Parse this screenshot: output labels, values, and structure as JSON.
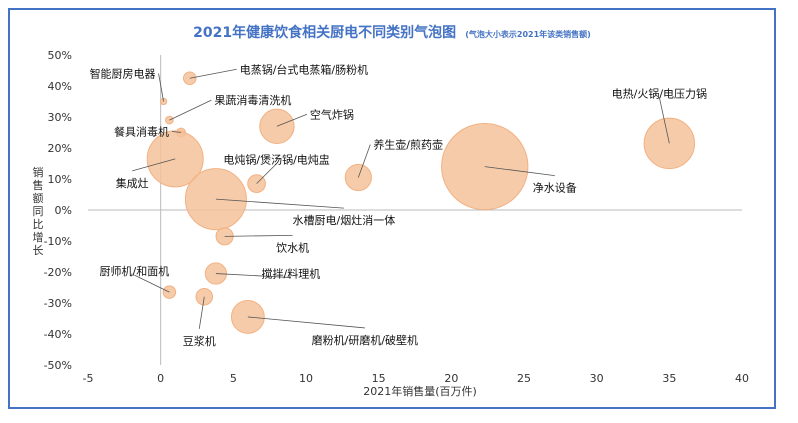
{
  "chart_data": {
    "type": "bubble",
    "title": "2021年健康饮食相关厨电不同类别气泡图",
    "subtitle": "(气泡大小表示2021年该类销售额)",
    "xlabel": "2021年销售量(百万件)",
    "ylabel": "销售额同比增长",
    "xlim": [
      -5,
      40
    ],
    "ylim": [
      -50,
      50
    ],
    "xticks": [
      -5,
      0,
      5,
      10,
      15,
      20,
      25,
      30,
      35,
      40
    ],
    "yticks": [
      -50,
      -40,
      -30,
      -20,
      -10,
      0,
      10,
      20,
      30,
      40,
      50
    ],
    "ytick_labels": [
      "-50%",
      "-40%",
      "-30%",
      "-20%",
      "-10%",
      "0%",
      "10%",
      "20%",
      "30%",
      "40%",
      "50%"
    ],
    "grid": false,
    "bubble_color": "#f5c29a",
    "points": [
      {
        "label": "智能厨房电器",
        "x": 0.2,
        "y": 35,
        "size": 0.2
      },
      {
        "label": "电蒸锅/台式电蒸箱/肠粉机",
        "x": 2.0,
        "y": 42.5,
        "size": 0.8
      },
      {
        "label": "果蔬消毒清洗机",
        "x": 0.6,
        "y": 29,
        "size": 0.3
      },
      {
        "label": "餐具消毒机",
        "x": 1.4,
        "y": 25,
        "size": 0.4
      },
      {
        "label": "空气炸锅",
        "x": 8.0,
        "y": 27,
        "size": 6.0
      },
      {
        "label": "电热/火锅/电压力锅",
        "x": 35.0,
        "y": 21.5,
        "size": 13.0
      },
      {
        "label": "养生壶/煎药壶",
        "x": 13.6,
        "y": 10.5,
        "size": 3.5
      },
      {
        "label": "电炖锅/煲汤锅/电炖盅",
        "x": 6.6,
        "y": 8.5,
        "size": 1.6
      },
      {
        "label": "集成灶",
        "x": 1.0,
        "y": 16.5,
        "size": 16.0
      },
      {
        "label": "净水设备",
        "x": 22.3,
        "y": 14,
        "size": 38.0
      },
      {
        "label": "水槽厨电/烟灶消一体",
        "x": 3.8,
        "y": 3.5,
        "size": 19.0
      },
      {
        "label": "饮水机",
        "x": 4.4,
        "y": -8.5,
        "size": 1.5
      },
      {
        "label": "搅拌/料理机",
        "x": 3.8,
        "y": -20.5,
        "size": 2.3
      },
      {
        "label": "厨师机/和面机",
        "x": 0.6,
        "y": -26.5,
        "size": 0.8
      },
      {
        "label": "豆浆机",
        "x": 3.0,
        "y": -28,
        "size": 1.4
      },
      {
        "label": "磨粉机/研磨机/破壁机",
        "x": 6.0,
        "y": -34.5,
        "size": 5.5
      }
    ]
  }
}
